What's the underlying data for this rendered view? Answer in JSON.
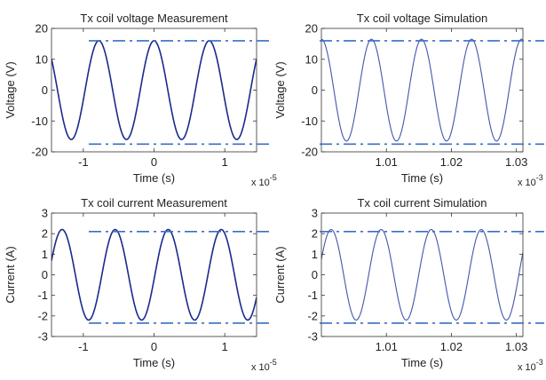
{
  "chart_data": [
    {
      "type": "line",
      "title": "Tx coil voltage Measurement",
      "xlabel": "Time (s)",
      "ylabel": "Voltage (V)",
      "x_exponent": {
        "base": "x 10",
        "power": "-5"
      },
      "xlim": [
        -1.45e-05,
        1.45e-05
      ],
      "ylim": [
        -20,
        20
      ],
      "xticks": [
        -1e-05,
        0,
        1e-05
      ],
      "xtick_labels": [
        "-1",
        "0",
        "1"
      ],
      "yticks": [
        20,
        10,
        0,
        -10,
        -20
      ],
      "ytick_labels": [
        "20",
        "10",
        "0",
        "-10",
        "-20"
      ],
      "grid": false,
      "series_color": "#1a2a8c",
      "signal": {
        "amplitude": 16,
        "offset": 0,
        "period": 7.8e-06,
        "peak_x": -7.8e-06
      },
      "reference_lines": [
        16,
        -17.5
      ],
      "reference_color": "#3a6fc4"
    },
    {
      "type": "line",
      "title": "Tx coil voltage Simulation",
      "xlabel": "Time (s)",
      "ylabel": "Voltage (V)",
      "x_exponent": {
        "base": "x 10",
        "power": "-3"
      },
      "xlim": [
        1.0,
        1.031
      ],
      "ylim": [
        -20,
        20
      ],
      "xticks": [
        1.01,
        1.02,
        1.03
      ],
      "xtick_labels": [
        "1.01",
        "1.02",
        "1.03"
      ],
      "yticks": [
        20,
        10,
        0,
        -10,
        -20
      ],
      "ytick_labels": [
        "20",
        "10",
        "0",
        "-10",
        "-20"
      ],
      "grid": false,
      "series_color": "#4455aa",
      "signal": {
        "amplitude": 16.5,
        "offset": 0,
        "period": 0.0077,
        "peak_x": 1.0077
      },
      "reference_lines": [
        16,
        -17.5
      ],
      "reference_color": "#3a6fc4"
    },
    {
      "type": "line",
      "title": "Tx coil current Measurement",
      "xlabel": "Time (s)",
      "ylabel": "Current (A)",
      "x_exponent": {
        "base": "x 10",
        "power": "-5"
      },
      "xlim": [
        -1.45e-05,
        1.45e-05
      ],
      "ylim": [
        -3,
        3
      ],
      "xticks": [
        -1e-05,
        0,
        1e-05
      ],
      "xtick_labels": [
        "-1",
        "0",
        "1"
      ],
      "yticks": [
        3,
        2,
        1,
        0,
        -1,
        -2,
        -3
      ],
      "ytick_labels": [
        "3",
        "2",
        "1",
        "0",
        "-1",
        "-2",
        "-3"
      ],
      "grid": false,
      "series_color": "#1a2a8c",
      "signal": {
        "amplitude": 2.2,
        "offset": 0,
        "period": 7.5e-06,
        "peak_x": -1.3e-05
      },
      "reference_lines": [
        2.1,
        -2.35
      ],
      "reference_color": "#3a6fc4"
    },
    {
      "type": "line",
      "title": "Tx coil current Simulation",
      "xlabel": "Time (s)",
      "ylabel": "Current (A)",
      "x_exponent": {
        "base": "x 10",
        "power": "-3"
      },
      "xlim": [
        1.0,
        1.031
      ],
      "ylim": [
        -3,
        3
      ],
      "xticks": [
        1.01,
        1.02,
        1.03
      ],
      "xtick_labels": [
        "1.01",
        "1.02",
        "1.03"
      ],
      "yticks": [
        3,
        2,
        1,
        0,
        -1,
        -2,
        -3
      ],
      "ytick_labels": [
        "3",
        "2",
        "1",
        "0",
        "-1",
        "-2",
        "-3"
      ],
      "grid": false,
      "series_color": "#4455aa",
      "signal": {
        "amplitude": 2.2,
        "offset": 0,
        "period": 0.0077,
        "peak_x": 1.0015
      },
      "reference_lines": [
        2.1,
        -2.35
      ],
      "reference_color": "#3a6fc4"
    }
  ]
}
